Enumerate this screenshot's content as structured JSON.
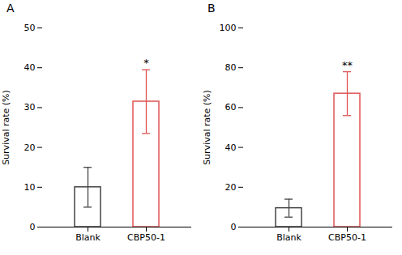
{
  "chart_data": [
    {
      "type": "bar",
      "title": "A",
      "categories": [
        "Blank",
        "CBP50-1"
      ],
      "values": [
        10.0,
        31.5
      ],
      "errors_up": [
        5.0,
        8.0
      ],
      "errors_down": [
        5.0,
        8.0
      ],
      "colors": [
        "#444444",
        "#e05555"
      ],
      "ylabel": "Survival rate (%)",
      "ylim": [
        0,
        50
      ],
      "yticks": [
        0,
        10,
        20,
        30,
        40,
        50
      ],
      "annotations": [
        {
          "category": "CBP50-1",
          "text": "*"
        }
      ]
    },
    {
      "type": "bar",
      "title": "B",
      "categories": [
        "Blank",
        "CBP50-1"
      ],
      "values": [
        9.5,
        67.0
      ],
      "errors_up": [
        4.5,
        11.0
      ],
      "errors_down": [
        4.5,
        11.0
      ],
      "colors": [
        "#444444",
        "#e05555"
      ],
      "ylabel": "Survival rate (%)",
      "ylim": [
        0,
        100
      ],
      "yticks": [
        0,
        20,
        40,
        60,
        80,
        100
      ],
      "annotations": [
        {
          "category": "CBP50-1",
          "text": "**"
        }
      ]
    }
  ]
}
